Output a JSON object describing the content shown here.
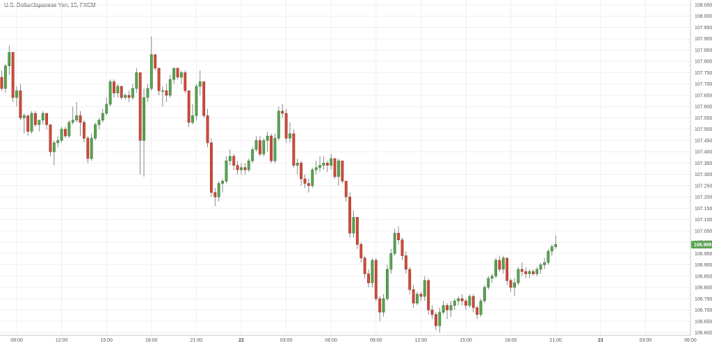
{
  "chart_data": {
    "type": "candlestick",
    "title": "U.S. Dollar/Japanese Yen, 15, FXCM",
    "y_ticks": [
      "108.050",
      "108.000",
      "107.950",
      "107.900",
      "107.850",
      "107.800",
      "107.750",
      "107.700",
      "107.650",
      "107.600",
      "107.550",
      "107.500",
      "107.450",
      "107.400",
      "107.350",
      "107.300",
      "107.250",
      "107.200",
      "107.150",
      "107.100",
      "107.050",
      "107.000",
      "106.950",
      "106.900",
      "106.850",
      "106.800",
      "106.750",
      "106.700",
      "106.650",
      "106.600"
    ],
    "ylim": [
      106.6,
      108.05
    ],
    "x_ticks": [
      {
        "label": "09:00",
        "bold": false
      },
      {
        "label": "12:00",
        "bold": false
      },
      {
        "label": "15:00",
        "bold": false
      },
      {
        "label": "18:00",
        "bold": false
      },
      {
        "label": "21:00",
        "bold": false
      },
      {
        "label": "22",
        "bold": true
      },
      {
        "label": "03:00",
        "bold": false
      },
      {
        "label": "06:00",
        "bold": false
      },
      {
        "label": "09:00",
        "bold": false
      },
      {
        "label": "12:00",
        "bold": false
      },
      {
        "label": "15:00",
        "bold": false
      },
      {
        "label": "18:00",
        "bold": false
      },
      {
        "label": "21:00",
        "bold": false
      },
      {
        "label": "23",
        "bold": true
      },
      {
        "label": "03:00",
        "bold": false
      },
      {
        "label": "06:00",
        "bold": false
      }
    ],
    "candles_per_tick": 12,
    "last_price": "106.989",
    "colors": {
      "up": "#5ba352",
      "down": "#cf4b3a",
      "up_border": "#2f6e2a",
      "down_border": "#8c2a1e",
      "grid": "#efefef",
      "badge": "#5ba352"
    },
    "candles": [
      [
        107.73,
        107.76,
        107.67,
        107.68
      ],
      [
        107.68,
        107.79,
        107.66,
        107.78
      ],
      [
        107.78,
        107.87,
        107.74,
        107.84
      ],
      [
        107.84,
        107.84,
        107.62,
        107.64
      ],
      [
        107.64,
        107.69,
        107.6,
        107.67
      ],
      [
        107.67,
        107.7,
        107.54,
        107.55
      ],
      [
        107.55,
        107.57,
        107.48,
        107.56
      ],
      [
        107.56,
        107.56,
        107.47,
        107.49
      ],
      [
        107.49,
        107.58,
        107.48,
        107.57
      ],
      [
        107.57,
        107.58,
        107.51,
        107.52
      ],
      [
        107.52,
        107.54,
        107.49,
        107.54
      ],
      [
        107.54,
        107.58,
        107.52,
        107.57
      ],
      [
        107.57,
        107.57,
        107.5,
        107.52
      ],
      [
        107.52,
        107.52,
        107.38,
        107.4
      ],
      [
        107.4,
        107.45,
        107.34,
        107.44
      ],
      [
        107.44,
        107.47,
        107.42,
        107.45
      ],
      [
        107.45,
        107.51,
        107.44,
        107.5
      ],
      [
        107.5,
        107.51,
        107.46,
        107.47
      ],
      [
        107.47,
        107.54,
        107.46,
        107.53
      ],
      [
        107.53,
        107.6,
        107.52,
        107.54
      ],
      [
        107.54,
        107.62,
        107.53,
        107.56
      ],
      [
        107.56,
        107.58,
        107.47,
        107.53
      ],
      [
        107.53,
        107.54,
        107.44,
        107.46
      ],
      [
        107.46,
        107.47,
        107.35,
        107.37
      ],
      [
        107.37,
        107.48,
        107.36,
        107.46
      ],
      [
        107.46,
        107.53,
        107.45,
        107.52
      ],
      [
        107.52,
        107.55,
        107.5,
        107.54
      ],
      [
        107.54,
        107.59,
        107.53,
        107.57
      ],
      [
        107.57,
        107.64,
        107.56,
        107.61
      ],
      [
        107.61,
        107.72,
        107.6,
        107.71
      ],
      [
        107.71,
        107.72,
        107.64,
        107.66
      ],
      [
        107.66,
        107.7,
        107.64,
        107.69
      ],
      [
        107.69,
        107.69,
        107.63,
        107.64
      ],
      [
        107.64,
        107.66,
        107.63,
        107.65
      ],
      [
        107.65,
        107.67,
        107.62,
        107.64
      ],
      [
        107.64,
        107.7,
        107.63,
        107.68
      ],
      [
        107.68,
        107.77,
        107.66,
        107.75
      ],
      [
        107.75,
        107.75,
        107.3,
        107.45
      ],
      [
        107.45,
        107.68,
        107.29,
        107.64
      ],
      [
        107.64,
        107.7,
        107.62,
        107.68
      ],
      [
        107.68,
        107.91,
        107.67,
        107.83
      ],
      [
        107.83,
        107.83,
        107.76,
        107.77
      ],
      [
        107.77,
        107.77,
        107.65,
        107.67
      ],
      [
        107.67,
        107.69,
        107.6,
        107.67
      ],
      [
        107.67,
        107.7,
        107.62,
        107.65
      ],
      [
        107.65,
        107.74,
        107.64,
        107.72
      ],
      [
        107.72,
        107.77,
        107.7,
        107.77
      ],
      [
        107.77,
        107.77,
        107.72,
        107.73
      ],
      [
        107.73,
        107.76,
        107.7,
        107.75
      ],
      [
        107.75,
        107.76,
        107.66,
        107.67
      ],
      [
        107.67,
        107.67,
        107.51,
        107.53
      ],
      [
        107.53,
        107.61,
        107.52,
        107.56
      ],
      [
        107.56,
        107.7,
        107.54,
        107.69
      ],
      [
        107.69,
        107.76,
        107.65,
        107.71
      ],
      [
        107.71,
        107.71,
        107.55,
        107.56
      ],
      [
        107.56,
        107.59,
        107.42,
        107.44
      ],
      [
        107.44,
        107.46,
        107.2,
        107.22
      ],
      [
        107.22,
        107.24,
        107.16,
        107.2
      ],
      [
        107.2,
        107.27,
        107.18,
        107.26
      ],
      [
        107.26,
        107.28,
        107.22,
        107.27
      ],
      [
        107.27,
        107.38,
        107.26,
        107.36
      ],
      [
        107.36,
        107.41,
        107.34,
        107.38
      ],
      [
        107.38,
        107.39,
        107.32,
        107.34
      ],
      [
        107.34,
        107.36,
        107.3,
        107.32
      ],
      [
        107.32,
        107.35,
        107.3,
        107.33
      ],
      [
        107.33,
        107.35,
        107.3,
        107.32
      ],
      [
        107.32,
        107.37,
        107.31,
        107.36
      ],
      [
        107.36,
        107.42,
        107.35,
        107.41
      ],
      [
        107.41,
        107.47,
        107.4,
        107.45
      ],
      [
        107.45,
        107.47,
        107.38,
        107.39
      ],
      [
        107.39,
        107.46,
        107.38,
        107.45
      ],
      [
        107.45,
        107.49,
        107.4,
        107.47
      ],
      [
        107.47,
        107.48,
        107.35,
        107.36
      ],
      [
        107.36,
        107.48,
        107.35,
        107.46
      ],
      [
        107.46,
        107.6,
        107.45,
        107.58
      ],
      [
        107.58,
        107.61,
        107.55,
        107.57
      ],
      [
        107.57,
        107.59,
        107.44,
        107.46
      ],
      [
        107.46,
        107.53,
        107.44,
        107.48
      ],
      [
        107.48,
        107.5,
        107.33,
        107.34
      ],
      [
        107.34,
        107.37,
        107.3,
        107.35
      ],
      [
        107.35,
        107.36,
        107.25,
        107.28
      ],
      [
        107.28,
        107.3,
        107.24,
        107.26
      ],
      [
        107.26,
        107.28,
        107.22,
        107.25
      ],
      [
        107.25,
        107.33,
        107.24,
        107.32
      ],
      [
        107.32,
        107.36,
        107.3,
        107.33
      ],
      [
        107.33,
        107.38,
        107.31,
        107.34
      ],
      [
        107.34,
        107.38,
        107.32,
        107.35
      ],
      [
        107.35,
        107.36,
        107.31,
        107.34
      ],
      [
        107.34,
        107.39,
        107.32,
        107.37
      ],
      [
        107.37,
        107.37,
        107.28,
        107.29
      ],
      [
        107.29,
        107.37,
        107.25,
        107.36
      ],
      [
        107.36,
        107.36,
        107.26,
        107.27
      ],
      [
        107.27,
        107.27,
        107.18,
        107.2
      ],
      [
        107.2,
        107.22,
        107.02,
        107.04
      ],
      [
        107.04,
        107.14,
        107.02,
        107.11
      ],
      [
        107.11,
        107.11,
        106.97,
        106.99
      ],
      [
        106.99,
        107.0,
        106.91,
        106.93
      ],
      [
        106.93,
        106.94,
        106.84,
        106.86
      ],
      [
        106.86,
        106.88,
        106.8,
        106.82
      ],
      [
        106.82,
        106.93,
        106.8,
        106.92
      ],
      [
        106.92,
        106.93,
        106.74,
        106.75
      ],
      [
        106.75,
        106.76,
        106.65,
        106.69
      ],
      [
        106.69,
        106.77,
        106.67,
        106.75
      ],
      [
        106.75,
        106.9,
        106.74,
        106.88
      ],
      [
        106.88,
        106.97,
        106.86,
        106.95
      ],
      [
        106.95,
        107.06,
        106.94,
        107.04
      ],
      [
        107.04,
        107.07,
        106.99,
        107.01
      ],
      [
        107.01,
        107.02,
        106.92,
        106.94
      ],
      [
        106.94,
        106.96,
        106.86,
        106.88
      ],
      [
        106.88,
        106.89,
        106.77,
        106.79
      ],
      [
        106.79,
        106.81,
        106.71,
        106.73
      ],
      [
        106.73,
        106.78,
        106.72,
        106.77
      ],
      [
        106.77,
        106.78,
        106.74,
        106.76
      ],
      [
        106.76,
        106.85,
        106.74,
        106.83
      ],
      [
        106.83,
        106.84,
        106.68,
        106.7
      ],
      [
        106.7,
        106.72,
        106.66,
        106.68
      ],
      [
        106.68,
        106.69,
        106.61,
        106.63
      ],
      [
        106.63,
        106.71,
        106.6,
        106.69
      ],
      [
        106.69,
        106.74,
        106.68,
        106.72
      ],
      [
        106.72,
        106.73,
        106.66,
        106.7
      ],
      [
        106.7,
        106.74,
        106.67,
        106.72
      ],
      [
        106.72,
        106.75,
        106.7,
        106.74
      ],
      [
        106.74,
        106.76,
        106.72,
        106.75
      ],
      [
        106.75,
        106.77,
        106.72,
        106.74
      ],
      [
        106.74,
        106.75,
        106.7,
        106.72
      ],
      [
        106.72,
        106.77,
        106.71,
        106.76
      ],
      [
        106.76,
        106.77,
        106.69,
        106.71
      ],
      [
        106.71,
        106.72,
        106.66,
        106.68
      ],
      [
        106.68,
        106.75,
        106.67,
        106.74
      ],
      [
        106.74,
        106.81,
        106.73,
        106.8
      ],
      [
        106.8,
        106.85,
        106.79,
        106.84
      ],
      [
        106.84,
        106.86,
        106.82,
        106.85
      ],
      [
        106.85,
        106.93,
        106.84,
        106.92
      ],
      [
        106.92,
        106.94,
        106.87,
        106.88
      ],
      [
        106.88,
        106.94,
        106.86,
        106.93
      ],
      [
        106.93,
        106.93,
        106.81,
        106.83
      ],
      [
        106.83,
        106.84,
        106.78,
        106.8
      ],
      [
        106.8,
        106.84,
        106.76,
        106.82
      ],
      [
        106.82,
        106.89,
        106.81,
        106.88
      ],
      [
        106.88,
        106.91,
        106.85,
        106.87
      ],
      [
        106.87,
        106.89,
        106.84,
        106.86
      ],
      [
        106.86,
        106.88,
        106.84,
        106.87
      ],
      [
        106.87,
        106.88,
        106.85,
        106.86
      ],
      [
        106.86,
        106.89,
        106.85,
        106.88
      ],
      [
        106.88,
        106.91,
        106.86,
        106.9
      ],
      [
        106.9,
        106.93,
        106.88,
        106.91
      ],
      [
        106.91,
        106.97,
        106.9,
        106.96
      ],
      [
        106.96,
        106.99,
        106.94,
        106.98
      ],
      [
        106.98,
        107.03,
        106.97,
        106.99
      ]
    ]
  }
}
